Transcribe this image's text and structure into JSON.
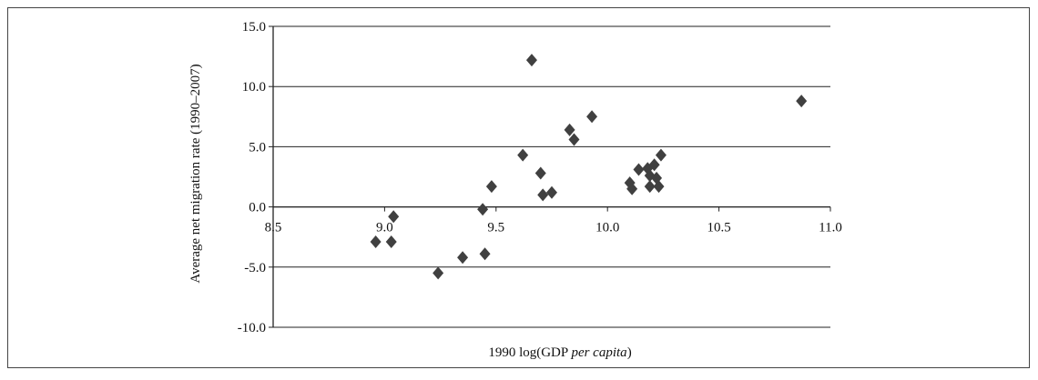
{
  "chart_data": {
    "type": "scatter",
    "x_label": [
      "1990 log(GDP ",
      "per capita",
      ")"
    ],
    "y_label": "Average net migration rate (1990–2007)",
    "color": "#404040",
    "grid": true,
    "x": [
      8.96,
      9.03,
      9.04,
      9.24,
      9.35,
      9.44,
      9.45,
      9.48,
      9.62,
      9.66,
      9.7,
      9.71,
      9.75,
      9.83,
      9.85,
      9.93,
      10.1,
      10.11,
      10.14,
      10.18,
      10.19,
      10.19,
      10.21,
      10.22,
      10.23,
      10.24,
      10.87
    ],
    "values": [
      -2.9,
      -2.9,
      -0.8,
      -5.5,
      -4.2,
      -0.2,
      -3.9,
      1.7,
      4.3,
      12.2,
      2.8,
      1.0,
      1.2,
      6.4,
      5.6,
      7.5,
      2.0,
      1.5,
      3.1,
      3.2,
      2.6,
      1.7,
      3.5,
      2.4,
      1.7,
      4.3,
      8.8
    ],
    "xlim": [
      8.5,
      11.0
    ],
    "xticks": [
      8.5,
      {
        "value": 9,
        "label": "9.0"
      },
      9.5,
      {
        "value": 10,
        "label": "10.0"
      },
      10.5,
      {
        "value": 11,
        "label": "11.0"
      }
    ],
    "ylim": [
      -10,
      15
    ],
    "yticks": [
      {
        "value": -10,
        "label": "-10.0"
      },
      {
        "value": -5,
        "label": "-5.0"
      },
      {
        "value": 0,
        "label": "0.0"
      },
      {
        "value": 5,
        "label": "5.0"
      },
      {
        "value": 10,
        "label": "10.0"
      },
      {
        "value": 15,
        "label": "15.0"
      }
    ]
  }
}
